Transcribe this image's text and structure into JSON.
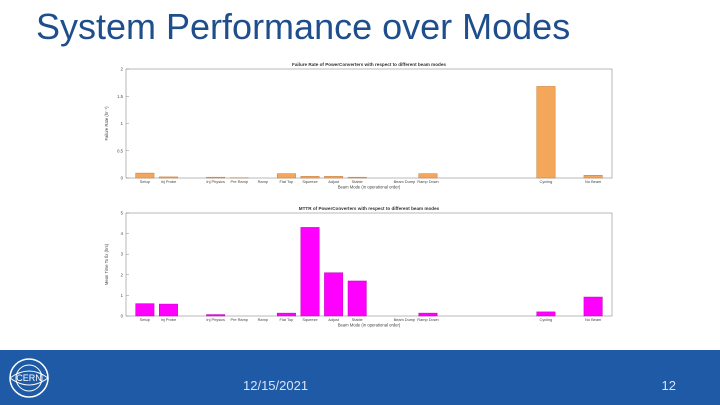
{
  "slide": {
    "title": "System Performance over Modes",
    "footer_date": "12/15/2021",
    "page_number": "12",
    "logo_text": "CERN"
  },
  "chart_data": [
    {
      "type": "bar",
      "title": "Failure Rate of PowerConverters with respect to different beam modes",
      "xlabel": "Beam Mode (in operational order)",
      "ylabel": "Failure Rate (hr⁻¹)",
      "ylim": [
        0,
        2
      ],
      "yticks": [
        0,
        0.5,
        1,
        1.5,
        2
      ],
      "ytick_labels": [
        "0",
        "0.5",
        "1",
        "1.5",
        "2"
      ],
      "color": "#f4a65a",
      "edge_color": "#c87b35",
      "categories": [
        "Setup",
        "Inj Probe",
        "",
        "Inj Physics",
        "Pre Ramp",
        "Ramp",
        "Flat Top",
        "Squeeze",
        "Adjust",
        "Stable",
        "",
        "Beam Dump",
        "Ramp Down",
        "",
        "",
        "",
        "",
        "Cycling",
        "",
        "No Beam"
      ],
      "values": [
        0.09,
        0.02,
        0,
        0.015,
        0.005,
        0,
        0.08,
        0.03,
        0.03,
        0.015,
        0,
        0,
        0.08,
        0,
        0,
        0,
        0,
        1.68,
        0,
        0.05
      ]
    },
    {
      "type": "bar",
      "title": "MTTR of PowerConverters with respect to different beam modes",
      "xlabel": "Beam Mode (in operational order)",
      "ylabel": "Mean Time To fix (hrs)",
      "ylim": [
        0,
        5
      ],
      "yticks": [
        0,
        1,
        2,
        3,
        4,
        5
      ],
      "ytick_labels": [
        "0",
        "1",
        "2",
        "3",
        "4",
        "5"
      ],
      "color": "#ff00ff",
      "edge_color": "#c000c0",
      "categories": [
        "Setup",
        "Inj Probe",
        "",
        "Inj Physics",
        "Pre Ramp",
        "Ramp",
        "Flat Top",
        "Squeeze",
        "Adjust",
        "Stable",
        "",
        "Beam Dump",
        "Ramp Down",
        "",
        "",
        "",
        "",
        "Cycling",
        "",
        "No Beam"
      ],
      "values": [
        0.6,
        0.58,
        0,
        0.07,
        0,
        0,
        0.14,
        4.3,
        2.1,
        1.7,
        0,
        0,
        0.14,
        0,
        0,
        0,
        0,
        0.2,
        0,
        0.92
      ]
    }
  ]
}
